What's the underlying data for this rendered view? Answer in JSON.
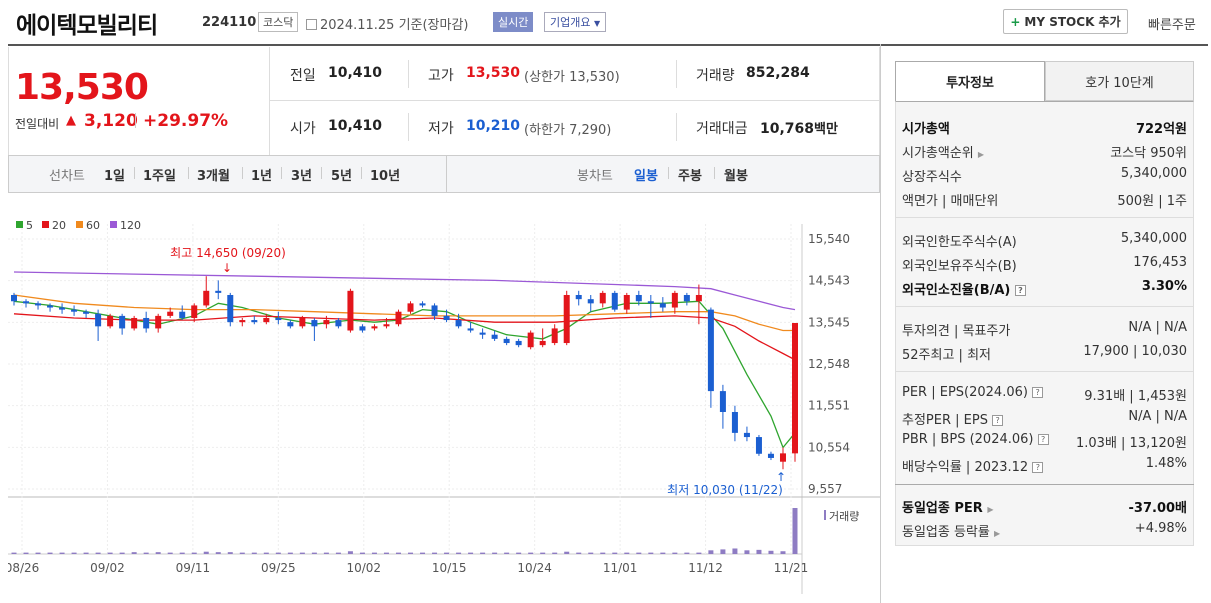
{
  "header": {
    "company": "에이텍모빌리티",
    "code": "224110",
    "market": "코스닥",
    "date_text": "2024.11.25  기준(장마감)",
    "live": "실시간",
    "overview": "기업개요",
    "mystock": "MY STOCK 추가",
    "quick_order": "빠른주문"
  },
  "price": {
    "current": "13,530",
    "prev_label": "전일대비",
    "change": "3,120",
    "change_pct": "+29.97%"
  },
  "stats": {
    "prev_close_label": "전일",
    "prev_close": "10,410",
    "open_label": "시가",
    "open": "10,410",
    "high_label": "고가",
    "high": "13,530",
    "high_note": "(상한가 13,530)",
    "low_label": "저가",
    "low": "10,210",
    "low_note": "(하한가 7,290)",
    "volume_label": "거래량",
    "volume": "852,284",
    "amount_label": "거래대금",
    "amount": "10,768",
    "amount_unit": "백만"
  },
  "toolbar": {
    "line_label": "선차트",
    "line_items": [
      "1일",
      "1주일",
      "3개월",
      "1년",
      "3년",
      "5년",
      "10년"
    ],
    "candle_label": "봉차트",
    "candle_items": [
      "일봉",
      "주봉",
      "월봉"
    ]
  },
  "colors": {
    "up": "#e3151b",
    "down": "#1b5fd1",
    "ma5": "#2fa52f",
    "ma20": "#e3151b",
    "ma60": "#f08a1e",
    "ma120": "#9b59d6"
  },
  "chart_data": {
    "type": "candlestick",
    "legend": [
      "5",
      "20",
      "60",
      "120"
    ],
    "y_ticks": [
      "15,540",
      "14,543",
      "13,545",
      "12,548",
      "11,551",
      "10,554",
      "9,557"
    ],
    "ylim": [
      9557,
      15540
    ],
    "x_ticks": [
      "08/26",
      "09/02",
      "09/11",
      "09/25",
      "10/02",
      "10/15",
      "10/24",
      "11/01",
      "11/12",
      "11/21"
    ],
    "max_annotation": "최고 14,650 (09/20)",
    "min_annotation": "최저 10,030 (11/22)",
    "volume_label": "거래량",
    "candles": [
      [
        14200,
        14250,
        13950,
        14050
      ],
      [
        14050,
        14100,
        13900,
        14000
      ],
      [
        14000,
        14050,
        13850,
        13950
      ],
      [
        13950,
        14000,
        13800,
        13900
      ],
      [
        13900,
        14000,
        13750,
        13850
      ],
      [
        13850,
        13950,
        13700,
        13800
      ],
      [
        13800,
        13850,
        13650,
        13750
      ],
      [
        13750,
        13850,
        13100,
        13450
      ],
      [
        13450,
        13750,
        13400,
        13700
      ],
      [
        13700,
        13750,
        13250,
        13400
      ],
      [
        13400,
        13700,
        13350,
        13650
      ],
      [
        13650,
        13800,
        13300,
        13400
      ],
      [
        13400,
        13750,
        13300,
        13700
      ],
      [
        13700,
        13900,
        13650,
        13800
      ],
      [
        13800,
        13950,
        13600,
        13650
      ],
      [
        13650,
        14000,
        13550,
        13950
      ],
      [
        13950,
        14650,
        13900,
        14300
      ],
      [
        14300,
        14550,
        14100,
        14250
      ],
      [
        14200,
        14250,
        13450,
        13550
      ],
      [
        13550,
        13650,
        13450,
        13600
      ],
      [
        13600,
        13700,
        13500,
        13550
      ],
      [
        13550,
        13750,
        13500,
        13650
      ],
      [
        13650,
        13800,
        13500,
        13600
      ],
      [
        13550,
        13600,
        13400,
        13450
      ],
      [
        13450,
        13700,
        13400,
        13650
      ],
      [
        13600,
        13650,
        13100,
        13450
      ],
      [
        13500,
        13700,
        13400,
        13600
      ],
      [
        13600,
        13650,
        13400,
        13450
      ],
      [
        13350,
        14350,
        13300,
        14300
      ],
      [
        13450,
        13500,
        13300,
        13350
      ],
      [
        13400,
        13500,
        13350,
        13450
      ],
      [
        13450,
        13650,
        13400,
        13500
      ],
      [
        13500,
        13850,
        13450,
        13800
      ],
      [
        13800,
        14050,
        13750,
        14000
      ],
      [
        14000,
        14050,
        13900,
        13950
      ],
      [
        13950,
        14000,
        13600,
        13700
      ],
      [
        13700,
        13850,
        13550,
        13600
      ],
      [
        13600,
        13750,
        13400,
        13450
      ],
      [
        13400,
        13550,
        13300,
        13350
      ],
      [
        13300,
        13400,
        13150,
        13250
      ],
      [
        13250,
        13350,
        13100,
        13150
      ],
      [
        13150,
        13200,
        13000,
        13050
      ],
      [
        13100,
        13150,
        12950,
        13000
      ],
      [
        12950,
        13350,
        12900,
        13300
      ],
      [
        13000,
        13400,
        12950,
        13100
      ],
      [
        13050,
        13500,
        13000,
        13400
      ],
      [
        13050,
        14300,
        13000,
        14200
      ],
      [
        14200,
        14300,
        13950,
        14100
      ],
      [
        14100,
        14200,
        13800,
        14000
      ],
      [
        14000,
        14300,
        13900,
        14250
      ],
      [
        14250,
        14300,
        13800,
        13850
      ],
      [
        13850,
        14250,
        13750,
        14200
      ],
      [
        14200,
        14300,
        13950,
        14050
      ],
      [
        14050,
        14200,
        13650,
        14000
      ],
      [
        14000,
        14150,
        13800,
        13900
      ],
      [
        13900,
        14300,
        13750,
        14250
      ],
      [
        14200,
        14250,
        13950,
        14050
      ],
      [
        14050,
        14450,
        13500,
        14200
      ],
      [
        13850,
        13900,
        11500,
        11900
      ],
      [
        11900,
        12050,
        11000,
        11400
      ],
      [
        11400,
        11550,
        10700,
        10900
      ],
      [
        10900,
        11050,
        10700,
        10800
      ],
      [
        10800,
        10850,
        10350,
        10400
      ],
      [
        10400,
        10450,
        10250,
        10300
      ],
      [
        10210,
        10550,
        10030,
        10410
      ],
      [
        10410,
        13530,
        10210,
        13530
      ]
    ],
    "ma": {
      "ma5": [
        [
          0,
          14050
        ],
        [
          3,
          13950
        ],
        [
          6,
          13800
        ],
        [
          9,
          13650
        ],
        [
          12,
          13500
        ],
        [
          15,
          13700
        ],
        [
          17,
          14000
        ],
        [
          19,
          13900
        ],
        [
          22,
          13650
        ],
        [
          25,
          13500
        ],
        [
          28,
          13600
        ],
        [
          30,
          13550
        ],
        [
          32,
          13600
        ],
        [
          34,
          13850
        ],
        [
          36,
          13800
        ],
        [
          38,
          13550
        ],
        [
          41,
          13250
        ],
        [
          44,
          13150
        ],
        [
          46,
          13400
        ],
        [
          48,
          13800
        ],
        [
          51,
          14000
        ],
        [
          54,
          14000
        ],
        [
          57,
          14050
        ],
        [
          59,
          13400
        ],
        [
          61,
          12300
        ],
        [
          63,
          11300
        ],
        [
          64,
          10550
        ],
        [
          65,
          10900
        ]
      ],
      "ma20": [
        [
          0,
          13750
        ],
        [
          5,
          13650
        ],
        [
          10,
          13600
        ],
        [
          15,
          13600
        ],
        [
          20,
          13700
        ],
        [
          25,
          13650
        ],
        [
          30,
          13600
        ],
        [
          35,
          13650
        ],
        [
          40,
          13550
        ],
        [
          45,
          13550
        ],
        [
          50,
          13650
        ],
        [
          55,
          13700
        ],
        [
          58,
          13650
        ],
        [
          60,
          13450
        ],
        [
          62,
          13100
        ],
        [
          64,
          12800
        ],
        [
          65,
          12650
        ]
      ],
      "ma60": [
        [
          0,
          14200
        ],
        [
          5,
          14000
        ],
        [
          10,
          13900
        ],
        [
          15,
          13850
        ],
        [
          20,
          13850
        ],
        [
          25,
          13800
        ],
        [
          30,
          13750
        ],
        [
          35,
          13700
        ],
        [
          40,
          13700
        ],
        [
          45,
          13700
        ],
        [
          50,
          13750
        ],
        [
          55,
          13800
        ],
        [
          58,
          13800
        ],
        [
          60,
          13700
        ],
        [
          62,
          13500
        ],
        [
          64,
          13350
        ],
        [
          65,
          13350
        ]
      ],
      "ma120": [
        [
          0,
          14750
        ],
        [
          10,
          14700
        ],
        [
          20,
          14650
        ],
        [
          30,
          14600
        ],
        [
          40,
          14550
        ],
        [
          50,
          14450
        ],
        [
          55,
          14400
        ],
        [
          58,
          14350
        ],
        [
          60,
          14200
        ],
        [
          62,
          14050
        ],
        [
          64,
          13900
        ],
        [
          65,
          13850
        ]
      ]
    },
    "volume": [
      3,
      3,
      3,
      3,
      3,
      3,
      3,
      3,
      3,
      3,
      4,
      3,
      4,
      3,
      3,
      3,
      5,
      4,
      4,
      3,
      3,
      3,
      3,
      3,
      3,
      3,
      3,
      3,
      6,
      3,
      3,
      3,
      3,
      3,
      3,
      3,
      3,
      3,
      3,
      3,
      3,
      3,
      3,
      3,
      3,
      3,
      5,
      3,
      3,
      3,
      3,
      3,
      3,
      3,
      3,
      3,
      3,
      3,
      8,
      10,
      12,
      8,
      9,
      7,
      6,
      100
    ]
  },
  "panel": {
    "tab_invest": "투자정보",
    "tab_hoga": "호가 10단계",
    "market_cap_label": "시가총액",
    "market_cap": "722억원",
    "market_cap_rank_label": "시가총액순위",
    "market_cap_rank": "코스닥 950위",
    "shares_label": "상장주식수",
    "shares": "5,340,000",
    "par_label": "액면가 | 매매단위",
    "par": "500원 | 1주",
    "foreign_limit_label": "외국인한도주식수(A)",
    "foreign_limit": "5,340,000",
    "foreign_hold_label": "외국인보유주식수(B)",
    "foreign_hold": "176,453",
    "foreign_rate_label": "외국인소진율(B/A)",
    "foreign_rate": "3.30%",
    "opinion_label": "투자의견 | 목표주가",
    "opinion": "N/A | N/A",
    "week52_label": "52주최고 | 최저",
    "week52": "17,900 | 10,030",
    "per_label": "PER | EPS(2024.06)",
    "per": "9.31배 | 1,453원",
    "est_per_label": "추정PER | EPS",
    "est_per": "N/A | N/A",
    "pbr_label": "PBR | BPS (2024.06)",
    "pbr": "1.03배 | 13,120원",
    "dividend_label": "배당수익률 | 2023.12",
    "dividend": "1.48%",
    "sector_per_label": "동일업종 PER",
    "sector_per": "-37.00배",
    "sector_chg_label": "동일업종 등락률",
    "sector_chg": "+4.98%"
  }
}
